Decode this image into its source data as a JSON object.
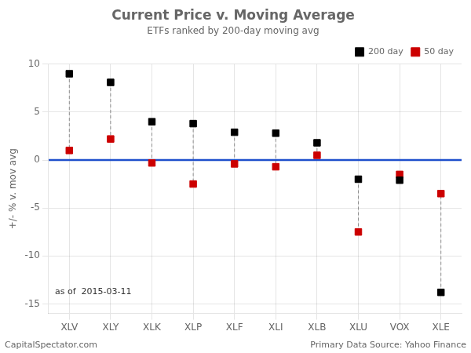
{
  "chart_data": {
    "type": "scatter",
    "title": "Current Price v. Moving Average",
    "subtitle": "ETFs ranked by 200-day moving avg",
    "ylabel": "+/- % v. mov avg",
    "categories": [
      "XLV",
      "XLY",
      "XLK",
      "XLP",
      "XLF",
      "XLI",
      "XLB",
      "XLU",
      "VOX",
      "XLE"
    ],
    "series": [
      {
        "name": "200 day",
        "color": "#000000",
        "marker": "square",
        "values": [
          9.0,
          8.1,
          4.0,
          3.8,
          2.9,
          2.8,
          1.8,
          -2.0,
          -2.1,
          -13.8
        ]
      },
      {
        "name": "50 day",
        "color": "#cc0000",
        "marker": "square",
        "values": [
          1.0,
          2.2,
          -0.3,
          -2.5,
          -0.4,
          -0.7,
          0.5,
          -7.5,
          -1.5,
          -3.5
        ]
      }
    ],
    "hline": {
      "value": 0,
      "color": "#1f4fcc"
    },
    "ylim": [
      -16,
      10
    ],
    "yticks": [
      -15,
      -10,
      -5,
      0,
      5,
      10
    ],
    "grid": true,
    "legend": "upper right",
    "annotation": "as of  2015-03-11",
    "footer_left": "CapitalSpectator.com",
    "footer_right": "Primary Data Source: Yahoo Finance"
  }
}
